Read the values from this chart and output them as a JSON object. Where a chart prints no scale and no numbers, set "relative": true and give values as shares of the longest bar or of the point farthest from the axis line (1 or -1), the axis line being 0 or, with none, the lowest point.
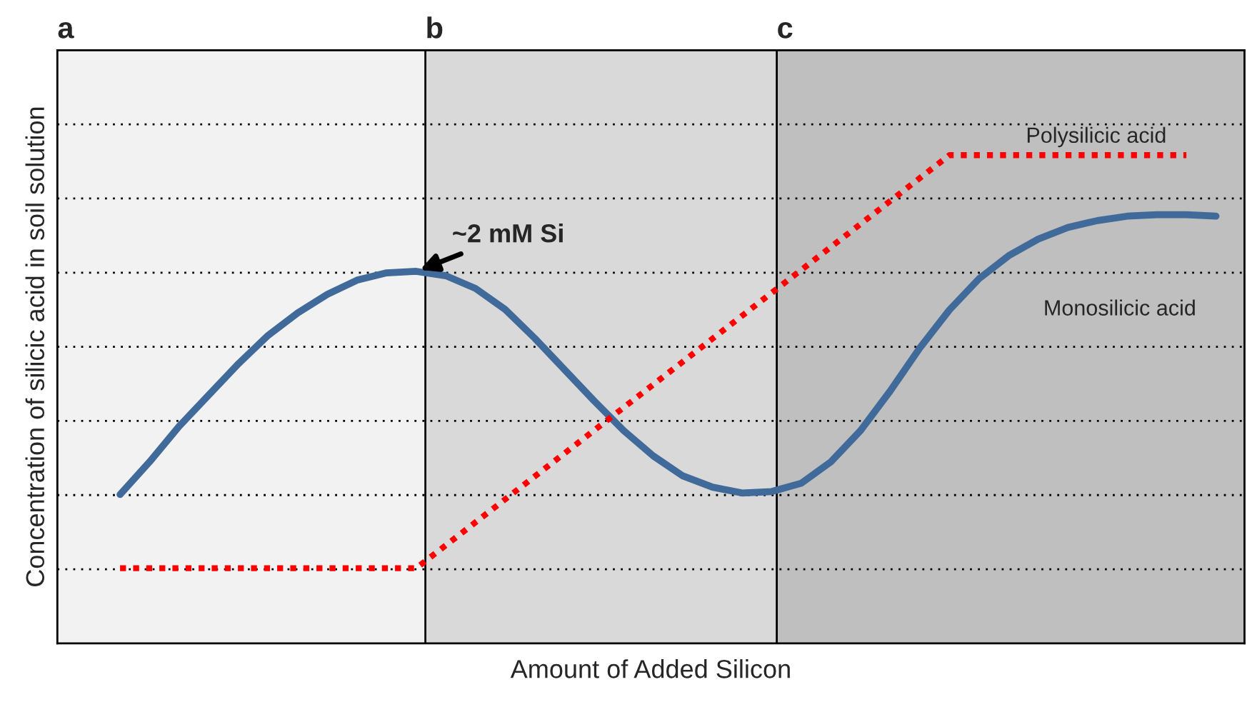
{
  "chart_data": {
    "type": "line",
    "relative": true,
    "xlabel": "Amount of Added Silicon",
    "ylabel": "Concentration of silicic acid in soil solution",
    "categories": [
      null,
      null,
      null,
      null,
      null,
      null,
      null,
      null,
      null,
      null,
      null,
      null,
      null,
      null,
      null,
      null,
      null,
      null,
      null,
      null,
      null,
      null,
      null,
      null,
      null,
      null,
      null,
      null,
      null,
      null,
      null,
      null,
      null,
      null,
      null,
      null,
      null,
      null
    ],
    "series": [
      {
        "name": "Monosilicic acid",
        "color": "#3f6a9a",
        "line_style": "solid",
        "values": [
          0.305,
          0.372,
          0.445,
          0.509,
          0.573,
          0.631,
          0.677,
          0.715,
          0.744,
          0.759,
          0.762,
          0.753,
          0.727,
          0.684,
          0.625,
          0.561,
          0.497,
          0.436,
          0.384,
          0.343,
          0.32,
          0.308,
          0.311,
          0.328,
          0.372,
          0.436,
          0.517,
          0.605,
          0.683,
          0.747,
          0.794,
          0.828,
          0.852,
          0.866,
          0.875,
          0.878,
          0.878,
          0.875
        ]
      },
      {
        "name": "Polysilicic acid",
        "color": "#ff0000",
        "line_style": "dotted",
        "values": [
          0.154,
          0.154,
          0.154,
          0.154,
          0.154,
          0.154,
          0.154,
          0.154,
          0.154,
          0.154,
          0.154,
          0.201,
          0.248,
          0.295,
          0.342,
          0.389,
          0.436,
          0.483,
          0.53,
          0.577,
          0.624,
          0.671,
          0.718,
          0.765,
          0.812,
          0.859,
          0.906,
          0.953,
          1.0,
          1.0,
          1.0,
          1.0,
          1.0,
          1.0,
          1.0,
          1.0,
          1.0,
          null
        ]
      }
    ],
    "annotations": [
      "a",
      "b",
      "c",
      "~2 mM Si"
    ],
    "grid": "y",
    "legend": false,
    "marker": "none"
  }
}
